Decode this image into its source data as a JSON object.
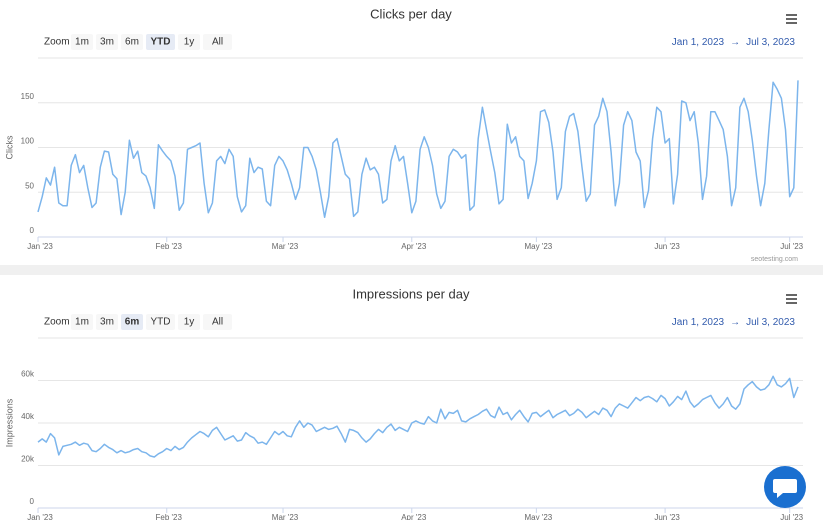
{
  "chart_data": [
    {
      "type": "line",
      "title": "Clicks per day",
      "y_label": "Clicks",
      "color": "#7cb5ec",
      "grid": true,
      "range_selector": {
        "label": "Zoom",
        "buttons": [
          "1m",
          "3m",
          "6m",
          "YTD",
          "1y",
          "All"
        ],
        "selected": "YTD",
        "from": "Jan 1, 2023",
        "separator": "→",
        "to": "Jul 3, 2023"
      },
      "credits": "seotesting.com",
      "xlim": [
        "2023-01-01",
        "2023-07-03"
      ],
      "xticks": [
        {
          "value": "2023-01-01",
          "label": "Jan '23"
        },
        {
          "value": "2023-02-01",
          "label": "Feb '23"
        },
        {
          "value": "2023-03-01",
          "label": "Mar '23"
        },
        {
          "value": "2023-04-01",
          "label": "Apr '23"
        },
        {
          "value": "2023-05-01",
          "label": "May '23"
        },
        {
          "value": "2023-06-01",
          "label": "Jun '23"
        },
        {
          "value": "2023-07-01",
          "label": "Jul '23"
        }
      ],
      "ylim": [
        0,
        200
      ],
      "yticks": [
        0,
        50,
        100,
        150
      ],
      "values": [
        28,
        45,
        66,
        58,
        78,
        38,
        35,
        35,
        80,
        92,
        72,
        80,
        55,
        33,
        38,
        78,
        96,
        95,
        70,
        65,
        25,
        50,
        108,
        88,
        96,
        72,
        68,
        55,
        32,
        103,
        96,
        90,
        85,
        68,
        30,
        38,
        98,
        100,
        102,
        105,
        60,
        27,
        38,
        85,
        90,
        82,
        98,
        90,
        45,
        28,
        35,
        88,
        72,
        78,
        76,
        40,
        35,
        80,
        90,
        85,
        75,
        60,
        42,
        55,
        100,
        100,
        90,
        75,
        50,
        22,
        45,
        105,
        110,
        90,
        70,
        65,
        23,
        28,
        70,
        88,
        75,
        78,
        70,
        38,
        42,
        85,
        102,
        85,
        90,
        60,
        27,
        40,
        98,
        112,
        100,
        80,
        48,
        32,
        40,
        90,
        98,
        95,
        88,
        92,
        30,
        35,
        110,
        145,
        120,
        95,
        72,
        37,
        42,
        126,
        105,
        112,
        90,
        85,
        43,
        60,
        85,
        140,
        142,
        128,
        95,
        42,
        55,
        118,
        135,
        138,
        118,
        78,
        40,
        48,
        125,
        135,
        155,
        140,
        95,
        35,
        60,
        125,
        140,
        130,
        95,
        85,
        33,
        52,
        110,
        145,
        140,
        105,
        110,
        37,
        70,
        152,
        150,
        130,
        140,
        105,
        42,
        68,
        140,
        140,
        130,
        120,
        90,
        35,
        55,
        145,
        155,
        140,
        108,
        68,
        35,
        60,
        120,
        173,
        165,
        155,
        120,
        45,
        55,
        175
      ]
    },
    {
      "type": "line",
      "title": "Impressions per day",
      "y_label": "Impressions",
      "color": "#7cb5ec",
      "grid": true,
      "range_selector": {
        "label": "Zoom",
        "buttons": [
          "1m",
          "3m",
          "6m",
          "YTD",
          "1y",
          "All"
        ],
        "selected": "6m",
        "from": "Jan 1, 2023",
        "separator": "→",
        "to": "Jul 3, 2023"
      },
      "xlim": [
        "2023-01-01",
        "2023-07-03"
      ],
      "xticks": [
        {
          "value": "2023-01-01",
          "label": "Jan '23"
        },
        {
          "value": "2023-02-01",
          "label": "Feb '23"
        },
        {
          "value": "2023-03-01",
          "label": "Mar '23"
        },
        {
          "value": "2023-04-01",
          "label": "Apr '23"
        },
        {
          "value": "2023-05-01",
          "label": "May '23"
        },
        {
          "value": "2023-06-01",
          "label": "Jun '23"
        },
        {
          "value": "2023-07-01",
          "label": "Jul '23"
        }
      ],
      "ylim": [
        0,
        80000
      ],
      "yticks": [
        0,
        {
          "value": 20000,
          "label": "20k"
        },
        {
          "value": 40000,
          "label": "40k"
        },
        {
          "value": 60000,
          "label": "60k"
        }
      ],
      "values": [
        31000,
        32500,
        31000,
        35000,
        33000,
        25000,
        29000,
        29500,
        30000,
        31000,
        29500,
        30500,
        30000,
        27000,
        26500,
        28000,
        30000,
        28500,
        27500,
        26000,
        27000,
        26000,
        26500,
        27500,
        28000,
        26500,
        26000,
        24500,
        24000,
        25500,
        26500,
        28000,
        27000,
        29000,
        27500,
        28500,
        31000,
        33000,
        34500,
        36000,
        35000,
        33500,
        36500,
        38000,
        35000,
        32000,
        33000,
        34000,
        31500,
        32000,
        35500,
        34000,
        33000,
        30500,
        31000,
        30000,
        33000,
        36000,
        34500,
        36000,
        34000,
        33500,
        38000,
        41000,
        38000,
        40000,
        39000,
        36000,
        37000,
        38000,
        37000,
        37500,
        38500,
        35000,
        31000,
        37000,
        36500,
        35500,
        33000,
        31000,
        32500,
        35000,
        37000,
        35500,
        38000,
        39500,
        36500,
        38000,
        37000,
        36000,
        40000,
        41000,
        40000,
        39500,
        43000,
        41000,
        40000,
        46500,
        42000,
        45000,
        44500,
        46000,
        41000,
        40500,
        42000,
        43000,
        44000,
        45500,
        46500,
        43500,
        42500,
        47500,
        44000,
        45000,
        41500,
        44000,
        46000,
        43000,
        40500,
        44500,
        45000,
        43000,
        44500,
        46000,
        42500,
        44000,
        45000,
        46000,
        43500,
        44500,
        46500,
        45000,
        42500,
        44000,
        45500,
        44000,
        47000,
        46000,
        43000,
        47000,
        49000,
        48000,
        47000,
        49500,
        52000,
        50500,
        52000,
        52500,
        51500,
        50000,
        53000,
        51500,
        48000,
        50000,
        52500,
        51000,
        55000,
        50000,
        47500,
        49000,
        51000,
        52000,
        53000,
        49500,
        47000,
        49000,
        52000,
        48000,
        46500,
        49000,
        56000,
        58000,
        59500,
        57000,
        55500,
        56000,
        58000,
        62000,
        58000,
        57000,
        58500,
        61000,
        52000,
        57000
      ]
    }
  ]
}
